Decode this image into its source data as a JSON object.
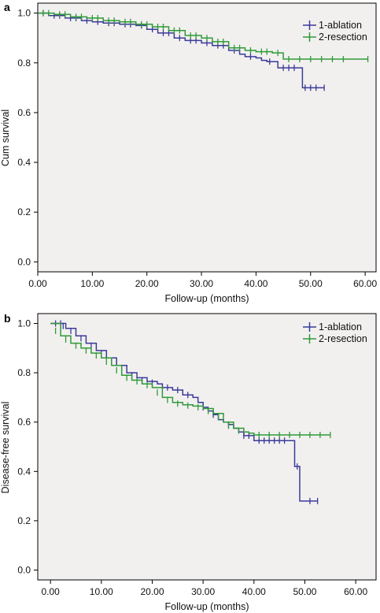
{
  "chart_data": [
    {
      "type": "line",
      "panel_label": "a",
      "xlabel": "Follow-up (months)",
      "ylabel": "Cum survival",
      "xlim": [
        0,
        62
      ],
      "ylim": [
        -0.04,
        1.04
      ],
      "xticks": [
        "0.00",
        "10.00",
        "20.00",
        "30.00",
        "40.00",
        "50.00",
        "60.00"
      ],
      "yticks": [
        "0.0",
        "0.2",
        "0.4",
        "0.6",
        "0.8",
        "1.0"
      ],
      "grid": false,
      "background": "#f2f0ef",
      "legend_position": "top-right",
      "series": [
        {
          "name": "1-ablation",
          "color": "#3b3a99",
          "step_x": [
            0,
            2,
            5,
            8,
            10,
            12,
            15,
            18,
            20,
            22,
            25,
            27,
            30,
            32,
            35,
            37,
            38,
            40,
            41,
            42,
            44,
            48.5,
            48.5,
            52.5
          ],
          "step_y": [
            1.0,
            0.99,
            0.98,
            0.97,
            0.965,
            0.96,
            0.955,
            0.95,
            0.935,
            0.92,
            0.9,
            0.89,
            0.88,
            0.87,
            0.85,
            0.835,
            0.825,
            0.82,
            0.81,
            0.805,
            0.78,
            0.78,
            0.7,
            0.7
          ],
          "censor_x": [
            1,
            3,
            4,
            6,
            7,
            9,
            11,
            13,
            14,
            16,
            17,
            19,
            21,
            23,
            24,
            26,
            28,
            29,
            31,
            33,
            34,
            36,
            39,
            42.5,
            45,
            46,
            47,
            49,
            50,
            51,
            52.5
          ],
          "censor_y": [
            1.0,
            0.99,
            0.99,
            0.98,
            0.98,
            0.97,
            0.965,
            0.96,
            0.96,
            0.955,
            0.955,
            0.95,
            0.935,
            0.92,
            0.92,
            0.9,
            0.89,
            0.89,
            0.88,
            0.87,
            0.87,
            0.85,
            0.825,
            0.805,
            0.78,
            0.78,
            0.78,
            0.7,
            0.7,
            0.7,
            0.7
          ]
        },
        {
          "name": "2-resection",
          "color": "#2f9a38",
          "step_x": [
            0,
            3,
            6,
            9,
            12,
            15,
            18,
            21,
            24,
            27,
            30,
            32,
            35,
            38,
            40,
            43,
            45,
            60.5
          ],
          "step_y": [
            1.0,
            0.995,
            0.985,
            0.98,
            0.97,
            0.965,
            0.955,
            0.945,
            0.93,
            0.91,
            0.9,
            0.885,
            0.86,
            0.85,
            0.845,
            0.84,
            0.815,
            0.815
          ],
          "censor_x": [
            1,
            2,
            4,
            5,
            7,
            8,
            10,
            11,
            13,
            14,
            16,
            17,
            19,
            20,
            22,
            23,
            25,
            26,
            28,
            29,
            31,
            33,
            34,
            36,
            37,
            39,
            41,
            42,
            44,
            46,
            48,
            50,
            52,
            54,
            56,
            60.5
          ],
          "censor_y": [
            1.0,
            1.0,
            0.995,
            0.995,
            0.985,
            0.985,
            0.98,
            0.98,
            0.97,
            0.97,
            0.965,
            0.965,
            0.955,
            0.955,
            0.945,
            0.945,
            0.93,
            0.93,
            0.91,
            0.91,
            0.9,
            0.885,
            0.885,
            0.86,
            0.86,
            0.85,
            0.845,
            0.845,
            0.84,
            0.815,
            0.815,
            0.815,
            0.815,
            0.815,
            0.815,
            0.815
          ]
        }
      ]
    },
    {
      "type": "line",
      "panel_label": "b",
      "xlabel": "Follow-up (months)",
      "ylabel": "Disease-free survival",
      "xlim": [
        -2.5,
        64
      ],
      "ylim": [
        -0.04,
        1.04
      ],
      "xticks": [
        "0.00",
        "10.00",
        "20.00",
        "30.00",
        "40.00",
        "50.00",
        "60.00"
      ],
      "yticks": [
        "0.0",
        "0.2",
        "0.4",
        "0.6",
        "0.8",
        "1.0"
      ],
      "grid": false,
      "background": "#f2f0ef",
      "legend_position": "top-right",
      "series": [
        {
          "name": "1-ablation",
          "color": "#3b3a99",
          "step_x": [
            0,
            1,
            3,
            5,
            7,
            9,
            11,
            13,
            15,
            17,
            19,
            21,
            22,
            24,
            26,
            28,
            29,
            30,
            31,
            32,
            33,
            34,
            35,
            36,
            37,
            38,
            40,
            48,
            48,
            49,
            49,
            52.5
          ],
          "step_y": [
            1.0,
            1.0,
            0.98,
            0.95,
            0.92,
            0.89,
            0.86,
            0.83,
            0.8,
            0.78,
            0.765,
            0.755,
            0.74,
            0.73,
            0.71,
            0.7,
            0.68,
            0.66,
            0.645,
            0.63,
            0.61,
            0.6,
            0.59,
            0.575,
            0.56,
            0.545,
            0.525,
            0.525,
            0.42,
            0.42,
            0.28,
            0.28
          ],
          "censor_x": [
            1,
            2,
            2.5,
            4,
            6,
            8,
            10,
            12,
            14,
            16,
            18,
            20,
            23,
            25,
            27,
            30,
            32,
            35,
            38,
            39,
            41,
            42,
            43,
            44,
            45,
            46,
            48.5,
            51,
            52.5
          ],
          "censor_y": [
            1.0,
            1.0,
            0.99,
            0.97,
            0.94,
            0.91,
            0.88,
            0.85,
            0.82,
            0.79,
            0.77,
            0.76,
            0.74,
            0.73,
            0.71,
            0.66,
            0.63,
            0.59,
            0.545,
            0.545,
            0.525,
            0.525,
            0.525,
            0.525,
            0.525,
            0.525,
            0.42,
            0.28,
            0.28
          ]
        },
        {
          "name": "2-resection",
          "color": "#2f9a38",
          "step_x": [
            0,
            2,
            4,
            6,
            8,
            10,
            12,
            14,
            16,
            18,
            20,
            22,
            24,
            26,
            28,
            30,
            32,
            34,
            36,
            38,
            39,
            40,
            55
          ],
          "step_y": [
            1.0,
            0.95,
            0.92,
            0.9,
            0.88,
            0.86,
            0.83,
            0.79,
            0.77,
            0.755,
            0.74,
            0.7,
            0.68,
            0.67,
            0.665,
            0.655,
            0.635,
            0.6,
            0.575,
            0.56,
            0.555,
            0.548,
            0.548
          ],
          "censor_x": [
            1,
            3,
            5,
            7,
            9,
            11,
            13,
            15,
            17,
            19,
            21,
            23,
            25,
            27,
            29,
            31,
            33,
            35,
            37,
            41,
            43,
            45,
            47,
            49,
            51,
            53,
            55
          ],
          "censor_y": [
            0.97,
            0.935,
            0.91,
            0.89,
            0.87,
            0.845,
            0.81,
            0.78,
            0.765,
            0.75,
            0.72,
            0.69,
            0.675,
            0.667,
            0.66,
            0.645,
            0.62,
            0.585,
            0.565,
            0.548,
            0.548,
            0.548,
            0.548,
            0.548,
            0.548,
            0.548,
            0.548
          ]
        }
      ]
    }
  ]
}
